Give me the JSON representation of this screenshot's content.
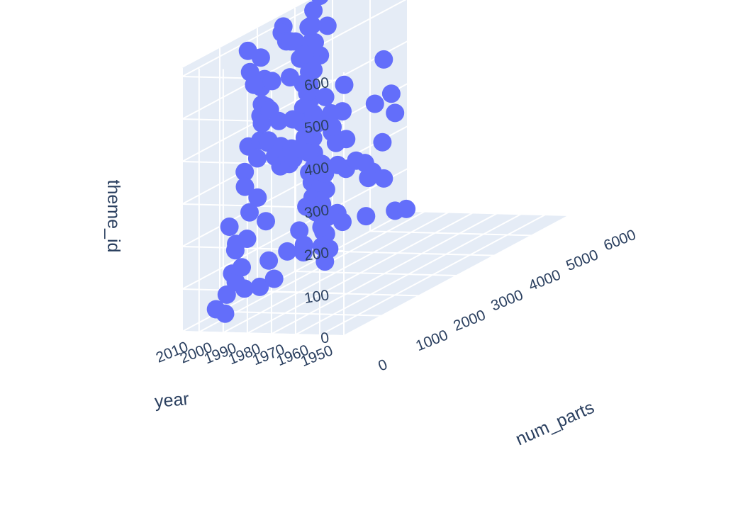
{
  "chart_data": {
    "type": "scatter",
    "subtype": "scatter3d",
    "title": "",
    "marker_color": "#636efa",
    "background": "#ffffff",
    "pane_color": "#e5ecf6",
    "grid_color": "#ffffff",
    "text_color": "#2a3f5f",
    "grid": true,
    "axes": {
      "x": {
        "title": "year",
        "range": [
          1950,
          2017
        ],
        "ticks": [
          "1950",
          "1960",
          "1970",
          "1980",
          "1990",
          "2000",
          "2010"
        ]
      },
      "y": {
        "title": "num_parts",
        "range": [
          0,
          6000
        ],
        "ticks": [
          "0",
          "1000",
          "2000",
          "3000",
          "4000",
          "5000",
          "6000"
        ]
      },
      "z": {
        "title": "theme_id",
        "range": [
          0,
          620
        ],
        "ticks": [
          "0",
          "100",
          "200",
          "300",
          "400",
          "500",
          "600"
        ]
      }
    },
    "points": [
      [
        1950,
        10,
        590
      ],
      [
        1953,
        30,
        400
      ],
      [
        1955,
        20,
        490
      ],
      [
        1956,
        50,
        520
      ],
      [
        1958,
        15,
        560
      ],
      [
        1958,
        10,
        380
      ],
      [
        1960,
        60,
        400
      ],
      [
        1962,
        40,
        495
      ],
      [
        1963,
        25,
        520
      ],
      [
        1965,
        40,
        380
      ],
      [
        1966,
        30,
        300
      ],
      [
        1967,
        30,
        210
      ],
      [
        1968,
        80,
        190
      ],
      [
        1970,
        100,
        240
      ],
      [
        1970,
        200,
        580
      ],
      [
        1971,
        150,
        430
      ],
      [
        1972,
        70,
        410
      ],
      [
        1973,
        120,
        500
      ],
      [
        1974,
        150,
        430
      ],
      [
        1975,
        100,
        190
      ],
      [
        1976,
        220,
        390
      ],
      [
        1977,
        300,
        590
      ],
      [
        1978,
        160,
        430
      ],
      [
        1979,
        130,
        495
      ],
      [
        1980,
        250,
        430
      ],
      [
        1981,
        300,
        380
      ],
      [
        1982,
        200,
        120
      ],
      [
        1983,
        150,
        520
      ],
      [
        1984,
        350,
        400
      ],
      [
        1985,
        250,
        160
      ],
      [
        1986,
        400,
        575
      ],
      [
        1987,
        300,
        250
      ],
      [
        1988,
        200,
        100
      ],
      [
        1989,
        500,
        430
      ],
      [
        1990,
        350,
        495
      ],
      [
        1991,
        600,
        420
      ],
      [
        1992,
        400,
        300
      ],
      [
        1993,
        700,
        500
      ],
      [
        1994,
        250,
        210
      ],
      [
        1995,
        500,
        560
      ],
      [
        1996,
        650,
        380
      ],
      [
        1997,
        300,
        140
      ],
      [
        1998,
        900,
        450
      ],
      [
        1999,
        500,
        80
      ],
      [
        2000,
        700,
        250
      ],
      [
        2000,
        1000,
        600
      ],
      [
        2001,
        400,
        100
      ],
      [
        2002,
        800,
        400
      ],
      [
        2003,
        1200,
        520
      ],
      [
        2004,
        600,
        180
      ],
      [
        2005,
        900,
        300
      ],
      [
        2006,
        1100,
        560
      ],
      [
        2007,
        500,
        20
      ],
      [
        2008,
        1500,
        380
      ],
      [
        2009,
        900,
        150
      ],
      [
        2010,
        1300,
        600
      ],
      [
        2011,
        800,
        50
      ],
      [
        2012,
        1800,
        450
      ],
      [
        2013,
        1000,
        200
      ],
      [
        2014,
        2000,
        500
      ],
      [
        2015,
        1200,
        80
      ],
      [
        2016,
        1600,
        300
      ],
      [
        2017,
        900,
        10
      ],
      [
        1985,
        1200,
        600
      ],
      [
        1990,
        1400,
        580
      ],
      [
        1995,
        1600,
        610
      ],
      [
        2000,
        1800,
        600
      ],
      [
        2005,
        2000,
        590
      ],
      [
        2010,
        2200,
        600
      ],
      [
        2014,
        2500,
        600
      ],
      [
        1998,
        2200,
        540
      ],
      [
        2004,
        2600,
        560
      ],
      [
        2010,
        3000,
        580
      ],
      [
        2014,
        3300,
        600
      ],
      [
        2016,
        3600,
        620
      ],
      [
        2003,
        2500,
        450
      ],
      [
        2008,
        2800,
        480
      ],
      [
        2012,
        3100,
        500
      ],
      [
        2015,
        3400,
        520
      ],
      [
        2016,
        3800,
        540
      ],
      [
        2000,
        2400,
        400
      ],
      [
        2006,
        2700,
        420
      ],
      [
        2011,
        3000,
        440
      ],
      [
        2014,
        3300,
        460
      ],
      [
        2016,
        3600,
        480
      ],
      [
        1996,
        2000,
        330
      ],
      [
        2002,
        2300,
        350
      ],
      [
        2008,
        2600,
        370
      ],
      [
        2012,
        2900,
        390
      ],
      [
        2015,
        3200,
        410
      ],
      [
        1994,
        2200,
        250
      ],
      [
        2000,
        2500,
        270
      ],
      [
        2006,
        2800,
        290
      ],
      [
        2011,
        3100,
        310
      ],
      [
        2014,
        3400,
        330
      ],
      [
        1992,
        2100,
        150
      ],
      [
        1999,
        2400,
        170
      ],
      [
        2005,
        2700,
        190
      ],
      [
        2010,
        3000,
        210
      ],
      [
        2014,
        3300,
        230
      ],
      [
        1995,
        2500,
        80
      ],
      [
        2001,
        2800,
        100
      ],
      [
        2007,
        3100,
        120
      ],
      [
        2012,
        3400,
        140
      ],
      [
        2015,
        3700,
        160
      ],
      [
        2003,
        2900,
        30
      ],
      [
        2009,
        3200,
        50
      ],
      [
        2013,
        3500,
        70
      ],
      [
        2016,
        3800,
        90
      ],
      [
        2011,
        3600,
        300
      ],
      [
        2014,
        3900,
        260
      ],
      [
        2016,
        4200,
        320
      ],
      [
        2013,
        4100,
        190
      ],
      [
        2015,
        4500,
        190
      ],
      [
        2016,
        4800,
        170
      ],
      [
        2016,
        4300,
        250
      ],
      [
        2015,
        5000,
        300
      ],
      [
        2016,
        5500,
        300
      ],
      [
        2016,
        5300,
        390
      ],
      [
        2016,
        5600,
        250
      ],
      [
        2010,
        4500,
        150
      ],
      [
        2015,
        5200,
        200
      ],
      [
        2016,
        5000,
        140
      ],
      [
        2016,
        5300,
        110
      ],
      [
        2015,
        4000,
        90
      ],
      [
        2014,
        4700,
        50
      ],
      [
        2016,
        4200,
        60
      ],
      [
        2016,
        5600,
        20
      ],
      [
        2016,
        5900,
        10
      ],
      [
        2016,
        3300,
        560
      ],
      [
        2017,
        6000,
        590
      ]
    ]
  }
}
